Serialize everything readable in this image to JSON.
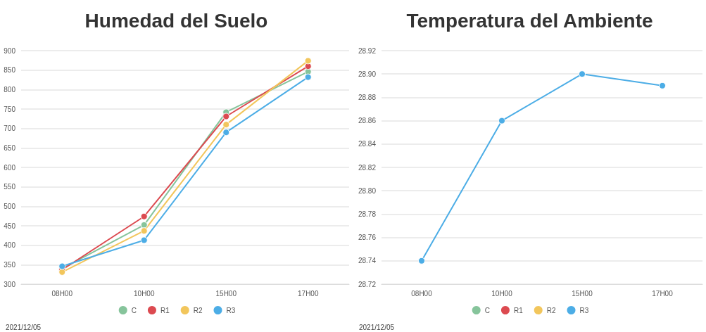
{
  "chart_data": [
    {
      "type": "line",
      "title": "Humedad del Suelo",
      "categories": [
        "08H00",
        "10H00",
        "15H00",
        "17H00"
      ],
      "series": [
        {
          "name": "C",
          "color": "#86c49b",
          "values": [
            340,
            452,
            742,
            846
          ]
        },
        {
          "name": "R1",
          "color": "#dc4a50",
          "values": [
            337,
            474,
            731,
            860
          ]
        },
        {
          "name": "R2",
          "color": "#f2c65c",
          "values": [
            331,
            437,
            710,
            874
          ]
        },
        {
          "name": "R3",
          "color": "#4cade6",
          "values": [
            346,
            413,
            690,
            832
          ]
        }
      ],
      "ylim": [
        300,
        900
      ],
      "yticks": [
        300,
        350,
        400,
        450,
        500,
        550,
        600,
        650,
        700,
        750,
        800,
        850,
        900
      ],
      "grid": "y",
      "legend": "bottom",
      "marker": "circle",
      "line_style": "solid",
      "annotations": [
        "2021/12/05"
      ]
    },
    {
      "type": "line",
      "title": "Temperatura del Ambiente",
      "categories": [
        "08H00",
        "10H00",
        "15H00",
        "17H00"
      ],
      "series": [
        {
          "name": "C",
          "color": "#86c49b",
          "values": [
            null,
            null,
            null,
            null
          ]
        },
        {
          "name": "R1",
          "color": "#dc4a50",
          "values": [
            null,
            null,
            null,
            null
          ]
        },
        {
          "name": "R2",
          "color": "#f2c65c",
          "values": [
            null,
            null,
            null,
            null
          ]
        },
        {
          "name": "R3",
          "color": "#4cade6",
          "values": [
            28.74,
            28.86,
            28.9,
            28.89
          ]
        }
      ],
      "ylim": [
        28.72,
        28.92
      ],
      "yticks": [
        {
          "value": 28.72,
          "label": "28.72"
        },
        {
          "value": 28.74,
          "label": "28.74"
        },
        {
          "value": 28.76,
          "label": "28.76"
        },
        {
          "value": 28.78,
          "label": "28.78"
        },
        {
          "value": 28.8,
          "label": "28.80"
        },
        {
          "value": 28.82,
          "label": "28.82"
        },
        {
          "value": 28.84,
          "label": "28.84"
        },
        {
          "value": 28.86,
          "label": "28.86"
        },
        {
          "value": 28.88,
          "label": "28.88"
        },
        {
          "value": 28.9,
          "label": "28.90"
        },
        {
          "value": 28.92,
          "label": "28.92"
        }
      ],
      "grid": "y",
      "legend": "bottom",
      "marker": "circle",
      "line_style": "solid",
      "annotations": [
        "2021/12/05"
      ]
    }
  ]
}
